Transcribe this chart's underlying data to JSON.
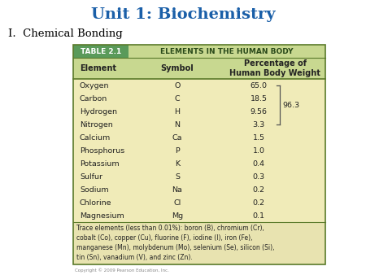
{
  "title": "Unit 1: Biochemistry",
  "subtitle": "I.  Chemical Bonding",
  "table_header": "TABLE 2.1",
  "table_title": "ELEMENTS IN THE HUMAN BODY",
  "col_headers": [
    "Element",
    "Symbol",
    "Percentage of\nHuman Body Weight"
  ],
  "rows": [
    [
      "Oxygen",
      "O",
      "65.0"
    ],
    [
      "Carbon",
      "C",
      "18.5"
    ],
    [
      "Hydrogen",
      "H",
      "9.56"
    ],
    [
      "Nitrogen",
      "N",
      "3.3"
    ],
    [
      "Calcium",
      "Ca",
      "1.5"
    ],
    [
      "Phosphorus",
      "P",
      "1.0"
    ],
    [
      "Potassium",
      "K",
      "0.4"
    ],
    [
      "Sulfur",
      "S",
      "0.3"
    ],
    [
      "Sodium",
      "Na",
      "0.2"
    ],
    [
      "Chlorine",
      "Cl",
      "0.2"
    ],
    [
      "Magnesium",
      "Mg",
      "0.1"
    ]
  ],
  "brace_label": "96.3",
  "brace_rows": [
    0,
    3
  ],
  "footnote": "Trace elements (less than 0.01%): boron (B), chromium (Cr),\ncobalt (Co), copper (Cu), fluorine (F), iodine (I), iron (Fe),\nmanganese (Mn), molybdenum (Mo), selenium (Se), silicon (Si),\ntin (Sn), vanadium (V), and zinc (Zn).",
  "copyright": "Copyright © 2009 Pearson Education, Inc.",
  "title_color": "#1a5fa8",
  "subtitle_color": "#000000",
  "header_bg_color": "#5a9a5a",
  "header_text_color": "#ffffff",
  "table_title_color": "#2a4a1a",
  "col_header_bg_color": "#c8d890",
  "table_bg_color": "#f0ebb8",
  "table_border_color": "#5a7a2a",
  "text_color": "#222222",
  "page_bg_color": "#ffffff",
  "brace_color": "#555555",
  "footnote_bg_color": "#e8e3b0",
  "copyright_color": "#888888"
}
